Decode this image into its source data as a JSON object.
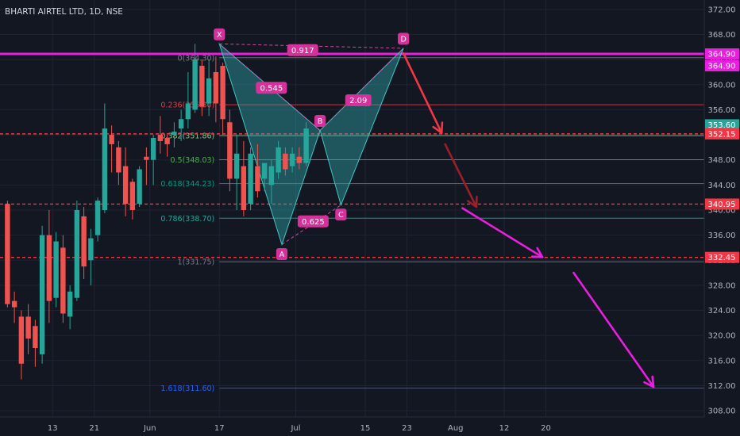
{
  "chart_data": {
    "type": "candlestick",
    "title": "BHARTI AIRTEL LTD, 1D, NSE",
    "ylim": [
      307.0,
      373.5
    ],
    "y_ticks": [
      308,
      312,
      316,
      320,
      324,
      328,
      332,
      336,
      340,
      344,
      348,
      352,
      356,
      360,
      364,
      368,
      372
    ],
    "x_ticks": [
      {
        "label": "13",
        "t": 7
      },
      {
        "label": "21",
        "t": 13
      },
      {
        "label": "Jun",
        "t": 21
      },
      {
        "label": "17",
        "t": 31
      },
      {
        "label": "Jul",
        "t": 42
      },
      {
        "label": "15",
        "t": 52
      },
      {
        "label": "23",
        "t": 58
      },
      {
        "label": "Aug",
        "t": 65
      },
      {
        "label": "12",
        "t": 72
      },
      {
        "label": "20",
        "t": 78
      }
    ],
    "candles": [
      {
        "t": 0,
        "o": 341.0,
        "h": 341.5,
        "c": 325.0,
        "l": 324.5
      },
      {
        "t": 1,
        "o": 325.5,
        "h": 327.0,
        "c": 324.5,
        "l": 322.0
      },
      {
        "t": 2,
        "o": 323.0,
        "h": 324.0,
        "c": 315.5,
        "l": 313.0
      },
      {
        "t": 3,
        "o": 323.0,
        "h": 325.0,
        "c": 319.5,
        "l": 317.0
      },
      {
        "t": 4,
        "o": 321.5,
        "h": 322.5,
        "c": 318.0,
        "l": 315.0
      },
      {
        "t": 5,
        "o": 317.0,
        "h": 337.5,
        "c": 336.0,
        "l": 315.5
      },
      {
        "t": 6,
        "o": 336.0,
        "h": 340.0,
        "c": 325.5,
        "l": 322.0
      },
      {
        "t": 7,
        "o": 326.0,
        "h": 336.5,
        "c": 335.0,
        "l": 324.5
      },
      {
        "t": 8,
        "o": 334.0,
        "h": 336.0,
        "c": 323.5,
        "l": 322.0
      },
      {
        "t": 9,
        "o": 323.0,
        "h": 328.0,
        "c": 327.0,
        "l": 321.0
      },
      {
        "t": 10,
        "o": 326.0,
        "h": 341.5,
        "c": 340.0,
        "l": 325.5
      },
      {
        "t": 11,
        "o": 339.0,
        "h": 340.5,
        "c": 331.0,
        "l": 329.0
      },
      {
        "t": 12,
        "o": 332.0,
        "h": 337.0,
        "c": 335.5,
        "l": 328.0
      },
      {
        "t": 13,
        "o": 336.0,
        "h": 342.0,
        "c": 341.5,
        "l": 335.0
      },
      {
        "t": 14,
        "o": 340.0,
        "h": 357.0,
        "c": 353.0,
        "l": 339.5
      },
      {
        "t": 15,
        "o": 352.0,
        "h": 353.5,
        "c": 350.5,
        "l": 346.0
      },
      {
        "t": 16,
        "o": 350.0,
        "h": 351.0,
        "c": 346.0,
        "l": 344.0
      },
      {
        "t": 17,
        "o": 347.0,
        "h": 350.0,
        "c": 341.0,
        "l": 339.0
      },
      {
        "t": 18,
        "o": 344.5,
        "h": 345.0,
        "c": 340.0,
        "l": 338.5
      },
      {
        "t": 19,
        "o": 341.0,
        "h": 347.0,
        "c": 346.5,
        "l": 340.5
      },
      {
        "t": 20,
        "o": 348.5,
        "h": 350.0,
        "c": 348.0,
        "l": 344.0
      },
      {
        "t": 21,
        "o": 348.0,
        "h": 352.0,
        "c": 351.5,
        "l": 344.0
      },
      {
        "t": 22,
        "o": 352.0,
        "h": 355.0,
        "c": 351.0,
        "l": 349.0
      },
      {
        "t": 23,
        "o": 351.5,
        "h": 352.0,
        "c": 350.5,
        "l": 348.5
      },
      {
        "t": 24,
        "o": 352.0,
        "h": 354.0,
        "c": 352.5,
        "l": 350.0
      },
      {
        "t": 25,
        "o": 353.0,
        "h": 356.0,
        "c": 354.5,
        "l": 351.0
      },
      {
        "t": 26,
        "o": 354.5,
        "h": 362.0,
        "c": 357.0,
        "l": 353.0
      },
      {
        "t": 27,
        "o": 356.0,
        "h": 366.5,
        "c": 364.0,
        "l": 355.5
      },
      {
        "t": 28,
        "o": 363.0,
        "h": 364.0,
        "c": 356.5,
        "l": 355.0
      },
      {
        "t": 29,
        "o": 357.0,
        "h": 364.0,
        "c": 361.0,
        "l": 355.0
      },
      {
        "t": 30,
        "o": 362.0,
        "h": 364.5,
        "c": 357.0,
        "l": 354.0
      },
      {
        "t": 31,
        "o": 363.0,
        "h": 363.5,
        "c": 354.5,
        "l": 352.0
      },
      {
        "t": 32,
        "o": 354.0,
        "h": 356.0,
        "c": 345.0,
        "l": 343.0
      },
      {
        "t": 33,
        "o": 345.0,
        "h": 352.0,
        "c": 349.0,
        "l": 340.0
      },
      {
        "t": 34,
        "o": 347.0,
        "h": 351.0,
        "c": 340.0,
        "l": 339.0
      },
      {
        "t": 35,
        "o": 341.0,
        "h": 350.0,
        "c": 349.0,
        "l": 340.0
      },
      {
        "t": 36,
        "o": 347.0,
        "h": 350.5,
        "c": 343.0,
        "l": 342.0
      },
      {
        "t": 37,
        "o": 345.0,
        "h": 347.0,
        "c": 347.5,
        "l": 343.0
      },
      {
        "t": 38,
        "o": 344.0,
        "h": 348.0,
        "c": 347.0,
        "l": 341.0
      },
      {
        "t": 39,
        "o": 346.0,
        "h": 351.0,
        "c": 350.0,
        "l": 345.0
      },
      {
        "t": 40,
        "o": 349.0,
        "h": 350.0,
        "c": 346.5,
        "l": 345.5
      },
      {
        "t": 41,
        "o": 347.0,
        "h": 350.0,
        "c": 349.0,
        "l": 346.0
      },
      {
        "t": 42,
        "o": 348.5,
        "h": 350.0,
        "c": 347.5,
        "l": 346.5
      },
      {
        "t": 43,
        "o": 347.5,
        "h": 354.0,
        "c": 353.0,
        "l": 347.0
      }
    ],
    "harmonic_pattern": {
      "points": [
        {
          "label": "X",
          "t": 31,
          "p": 366.5
        },
        {
          "label": "A",
          "t": 40,
          "p": 334.5
        },
        {
          "label": "B",
          "t": 45.5,
          "p": 352.7
        },
        {
          "label": "C",
          "t": 48.5,
          "p": 340.8
        },
        {
          "label": "D",
          "t": 57.5,
          "p": 365.8
        }
      ],
      "ratios": [
        {
          "label": "0.917",
          "t": 43,
          "p": 365.5
        },
        {
          "label": "0.545",
          "t": 38.5,
          "p": 359.5
        },
        {
          "label": "2.09",
          "t": 51,
          "p": 357.5
        },
        {
          "label": "0.625",
          "t": 44.5,
          "p": 338.2
        }
      ]
    },
    "fib_levels": [
      {
        "label": "0(364.30)",
        "ratio": 0,
        "value": 364.3,
        "color": "#787b86"
      },
      {
        "label": "0.236(356.80)",
        "ratio": 0.236,
        "value": 356.8,
        "color": "#f23645"
      },
      {
        "label": "0.382(351.86)",
        "ratio": 0.382,
        "value": 351.86,
        "color": "#81c784"
      },
      {
        "label": "0.5(348.03)",
        "ratio": 0.5,
        "value": 348.03,
        "color": "#4caf50"
      },
      {
        "label": "0.618(344.23)",
        "ratio": 0.618,
        "value": 344.23,
        "color": "#089981"
      },
      {
        "label": "0.786(338.70)",
        "ratio": 0.786,
        "value": 338.7,
        "color": "#26a69a"
      },
      {
        "label": "1(331.75)",
        "ratio": 1,
        "value": 331.75,
        "color": "#787b86"
      },
      {
        "label": "1.618(311.60)",
        "ratio": 1.618,
        "value": 311.6,
        "color": "#2962ff"
      }
    ],
    "horizontal_levels": [
      {
        "value": 364.9,
        "label": "364.90",
        "color": "#e91ee0",
        "style": "solid"
      },
      {
        "value": 352.15,
        "label": "352.15",
        "color": "#f23645",
        "style": "dashed"
      },
      {
        "value": 340.95,
        "label": "340.95",
        "color": "#f23645",
        "style": "dashed"
      },
      {
        "value": 332.45,
        "label": "332.45",
        "color": "#f23645",
        "style": "dashed"
      }
    ],
    "price_labels": [
      {
        "value": 364.9,
        "label": "364.90",
        "color": "#e91ee0"
      },
      {
        "value": 353.6,
        "label": "353.60",
        "color": "#26a69a"
      }
    ],
    "projection_arrows": [
      {
        "from": {
          "t": 57.5,
          "p": 365.0
        },
        "to": {
          "t": 63,
          "p": 352.3
        },
        "color": "#f23645"
      },
      {
        "from": {
          "t": 63.5,
          "p": 350.5
        },
        "to": {
          "t": 68,
          "p": 340.5
        },
        "color": "#9c1f28"
      },
      {
        "from": {
          "t": 66,
          "p": 340.3
        },
        "to": {
          "t": 77.5,
          "p": 332.5
        },
        "color": "#e91ee0"
      },
      {
        "from": {
          "t": 82,
          "p": 330.0
        },
        "to": {
          "t": 93.5,
          "p": 311.8
        },
        "color": "#e91ee0"
      }
    ],
    "colors": {
      "up": "#26a69a",
      "down": "#ef5350",
      "pattern_fill": "#2fa3a8",
      "badge": "#d6319a"
    }
  }
}
